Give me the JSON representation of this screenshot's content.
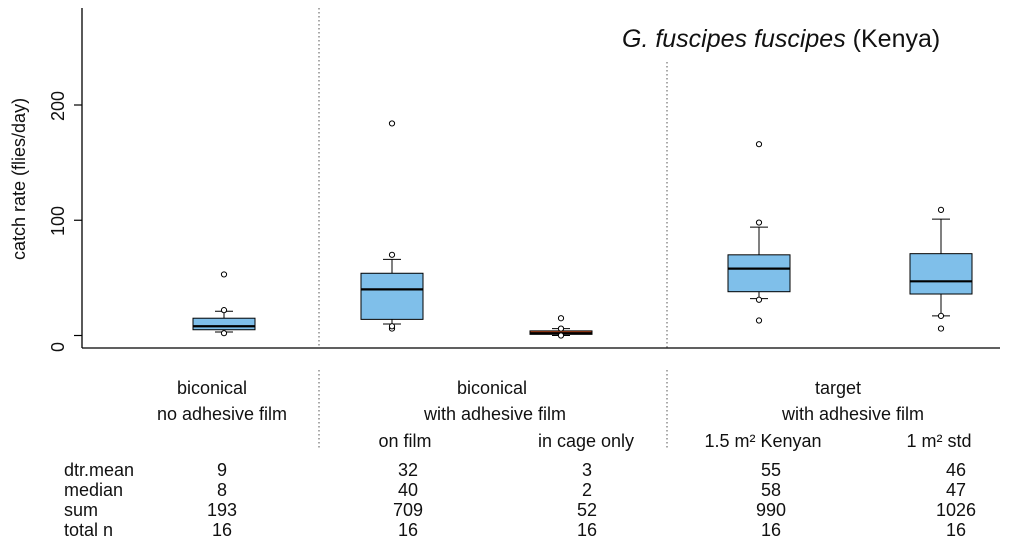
{
  "chart_data": {
    "type": "box",
    "title_italic": "G. fuscipes fuscipes",
    "title_rest": " (Kenya)",
    "ylabel": "catch rate (flies/day)",
    "yticks": [
      0,
      100,
      200
    ],
    "ylim": [
      -12,
      290
    ],
    "boxes": [
      {
        "q1": 5,
        "median": 8,
        "q3": 15,
        "wlo": 3,
        "whi": 21,
        "outliers": [
          2,
          22,
          53
        ],
        "color": "#7fbfea"
      },
      {
        "q1": 14,
        "median": 40,
        "q3": 54,
        "wlo": 10,
        "whi": 66,
        "outliers": [
          6,
          8,
          70,
          184
        ],
        "color": "#7fbfea"
      },
      {
        "q1": 1,
        "median": 2,
        "q3": 4,
        "wlo": 0,
        "whi": 6,
        "outliers": [
          0,
          6,
          15
        ],
        "color": "#e2561f"
      },
      {
        "q1": 38,
        "median": 58,
        "q3": 70,
        "wlo": 32,
        "whi": 94,
        "outliers": [
          13,
          31,
          98,
          166
        ],
        "color": "#7fbfea"
      },
      {
        "q1": 36,
        "median": 47,
        "q3": 71,
        "wlo": 17,
        "whi": 101,
        "outliers": [
          6,
          17,
          109
        ],
        "color": "#7fbfea"
      }
    ]
  },
  "groups": [
    {
      "line1": "biconical",
      "line2": "no adhesive film"
    },
    {
      "line1": "biconical",
      "line2": "with adhesive film"
    },
    {
      "line1": "target",
      "line2": "with adhesive film"
    }
  ],
  "sublabels": [
    "on film",
    "in cage only",
    "1.5 m² Kenyan",
    "1 m² std"
  ],
  "table": {
    "row_labels": [
      "dtr.mean",
      "median",
      "sum",
      "total n"
    ],
    "columns": [
      [
        "9",
        "8",
        "193",
        "16"
      ],
      [
        "32",
        "40",
        "709",
        "16"
      ],
      [
        "3",
        "2",
        "52",
        "16"
      ],
      [
        "55",
        "58",
        "990",
        "16"
      ],
      [
        "46",
        "47",
        "1026",
        "16"
      ]
    ]
  }
}
